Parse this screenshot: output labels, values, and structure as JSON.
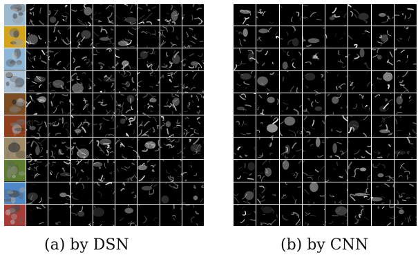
{
  "captions": {
    "a": "(a) by DSN",
    "b": "(b) by CNN"
  },
  "colors": {
    "background": "#ffffff",
    "feature_map_background": "#000000",
    "feature_map_separator": "#ffffff",
    "row_thumbnail_palette": [
      "#9bb9cf",
      "#d5a31a",
      "#8db7d8",
      "#a8bfd3",
      "#7a4d22",
      "#8f3f1d",
      "#9e8b66",
      "#5d7d2e",
      "#4d88c8",
      "#a73b35"
    ]
  }
}
